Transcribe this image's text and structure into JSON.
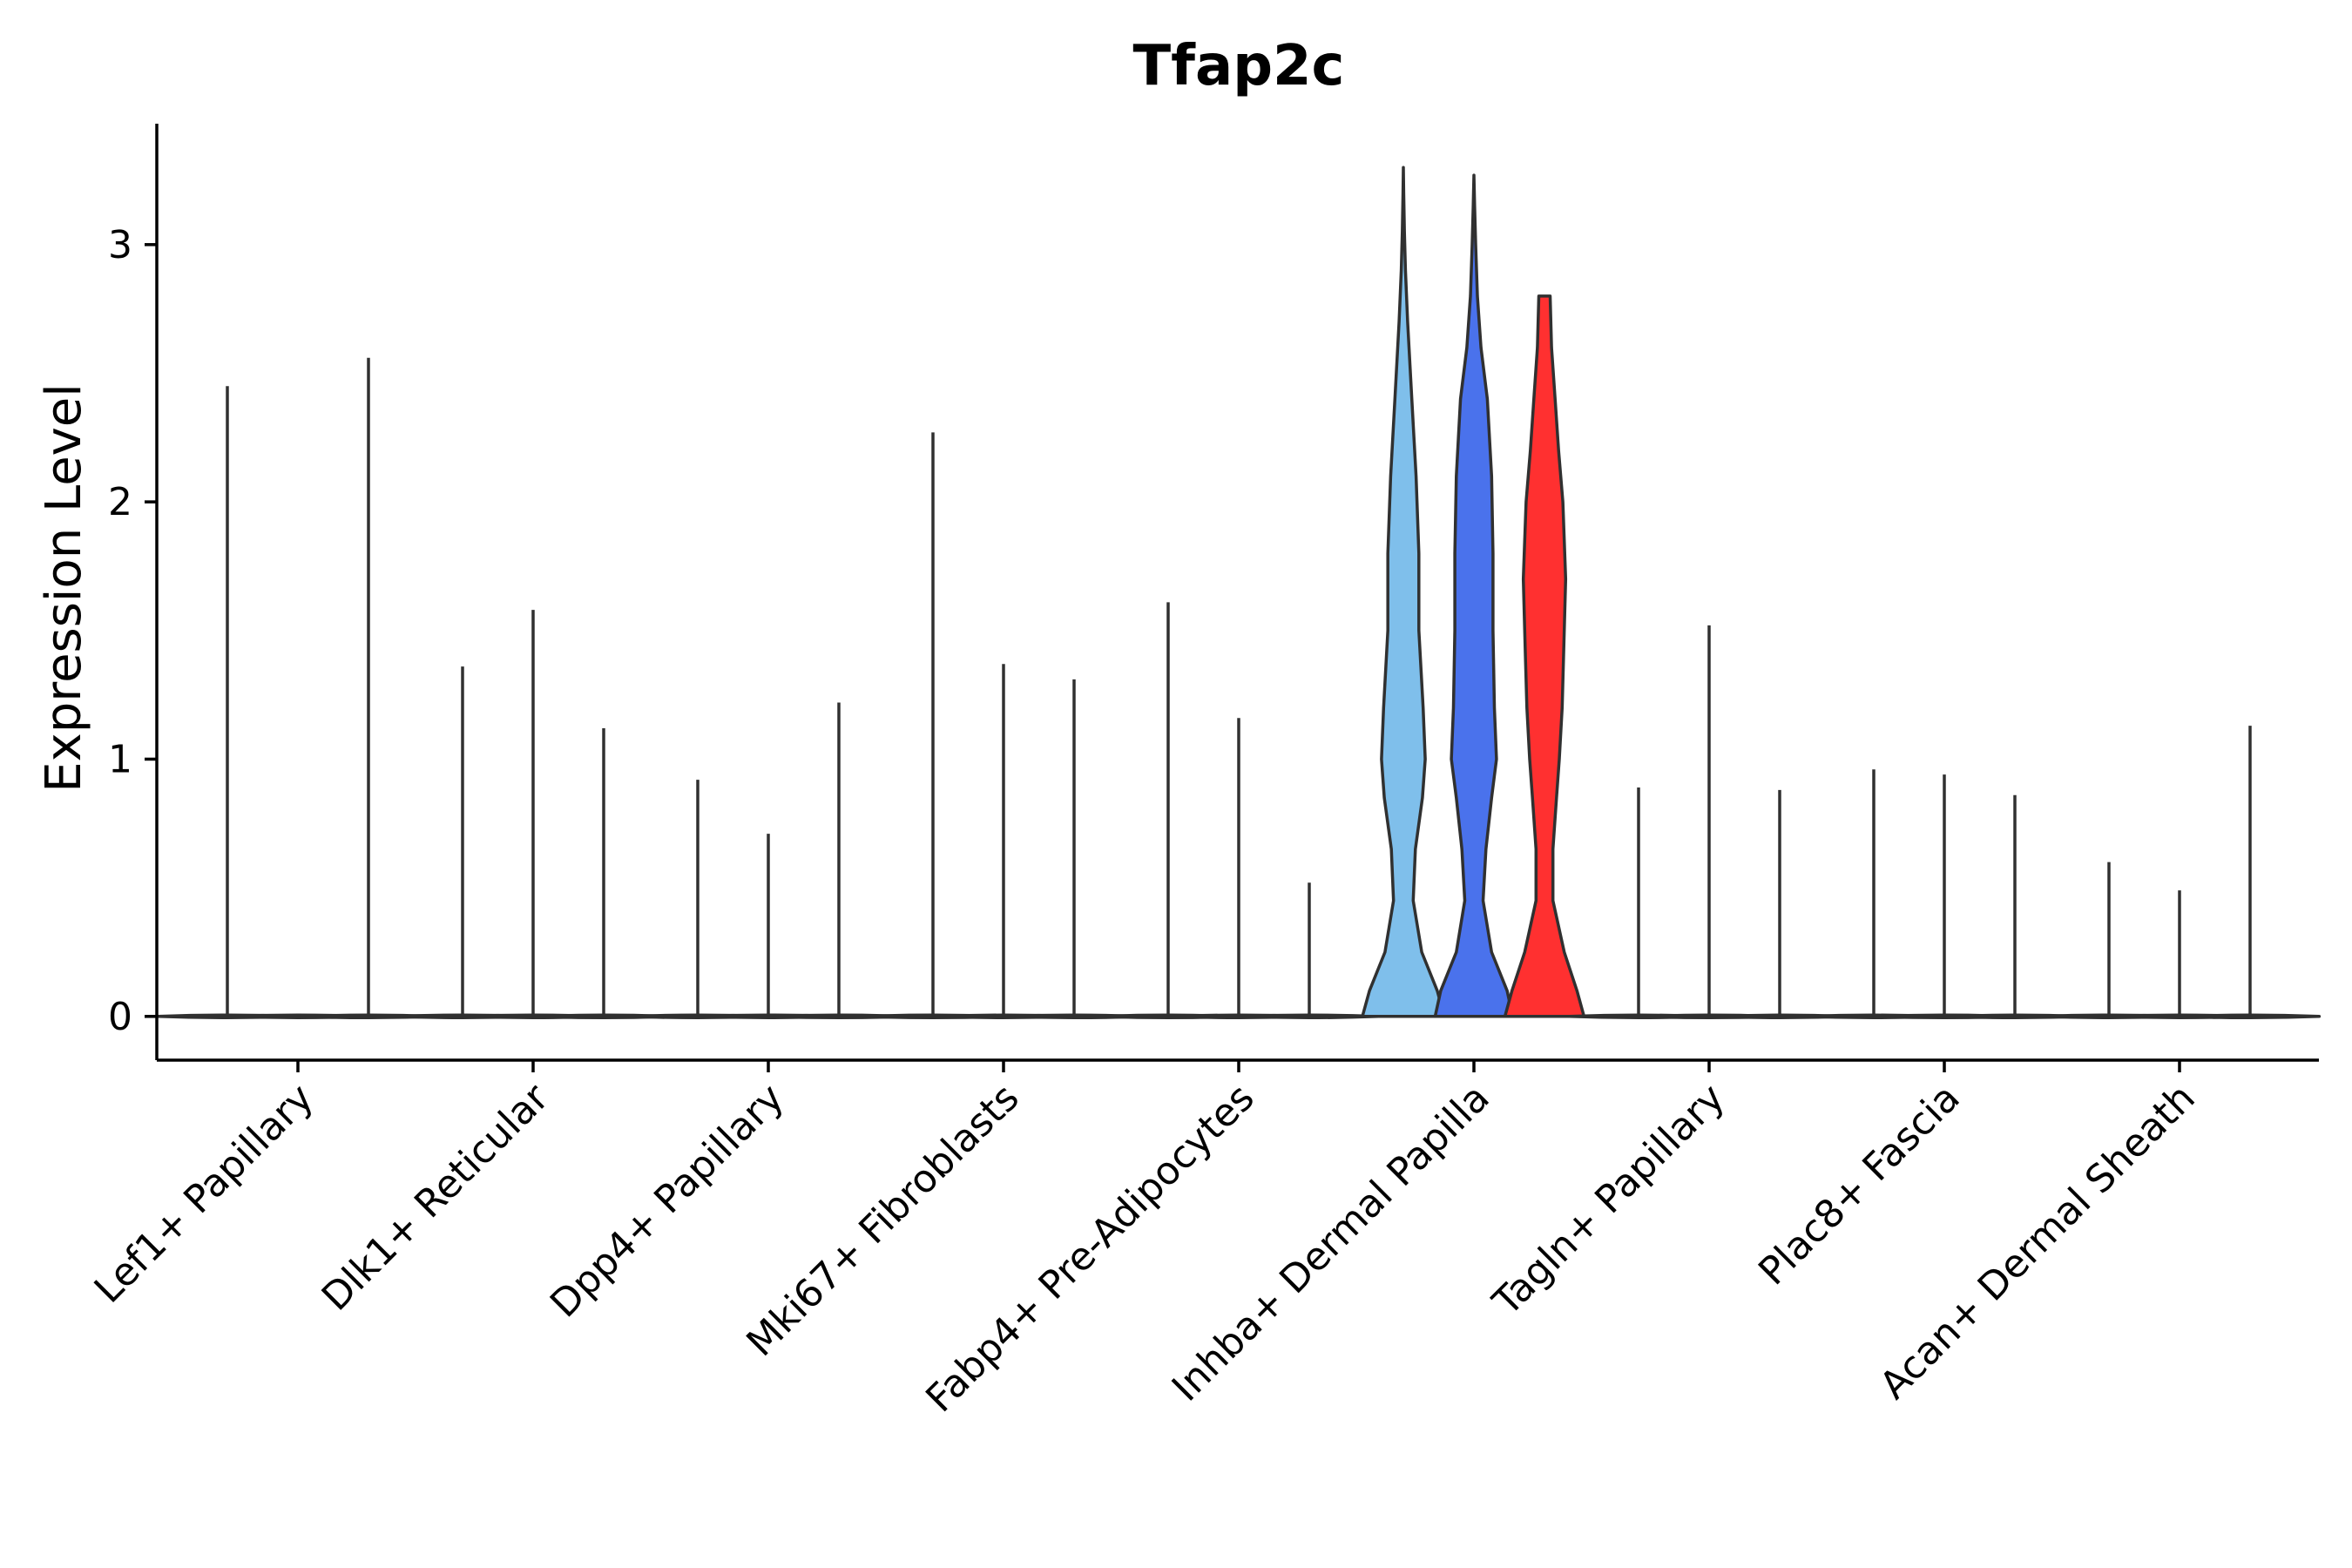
{
  "chart_data": {
    "type": "violin",
    "title": "Tfap2c",
    "xlabel": "",
    "ylabel": "Expression Level",
    "ylim": [
      -0.17,
      3.47
    ],
    "yticks": [
      0,
      1,
      2,
      3
    ],
    "grid": false,
    "legend": "none",
    "categories": [
      "Lef1+ Papillary",
      "Dlk1+ Reticular",
      "Dpp4+ Papillary",
      "Mki67+ Fibroblasts",
      "Fabp4+ Pre-Adipocytes",
      "Inhba+ Dermal Papilla",
      "Tagln+ Papillary",
      "Plac8+ Fascia",
      "Acan+ Dermal Sheath"
    ],
    "subgroups": [
      "group 1",
      "group 2",
      "group 3"
    ],
    "subgroup_colors": [
      "#7fbfeb",
      "#4a72ec",
      "#ff3030"
    ],
    "default_fill": "#ffffff",
    "max_values": [
      [
        2.45,
        null,
        2.56
      ],
      [
        1.36,
        1.58,
        1.12
      ],
      [
        0.92,
        0.71,
        1.22
      ],
      [
        2.27,
        1.37,
        1.31
      ],
      [
        1.61,
        1.16,
        0.52
      ],
      [
        3.3,
        3.27,
        2.8
      ],
      [
        0.89,
        1.52,
        0.88
      ],
      [
        0.96,
        0.94,
        0.86
      ],
      [
        0.6,
        0.49,
        1.13
      ]
    ],
    "density_profiles": {
      "Inhba+ Dermal Papilla": {
        "group 1": {
          "y": [
            0,
            0.1,
            0.25,
            0.45,
            0.65,
            0.85,
            1.0,
            1.2,
            1.5,
            1.8,
            2.1,
            2.4,
            2.7,
            2.9,
            3.05,
            3.2,
            3.3
          ],
          "half_width": [
            0.58,
            0.48,
            0.26,
            0.14,
            0.17,
            0.27,
            0.31,
            0.28,
            0.22,
            0.22,
            0.18,
            0.12,
            0.06,
            0.03,
            0.015,
            0.005,
            0
          ]
        },
        "group 2": {
          "y": [
            0,
            0.1,
            0.25,
            0.45,
            0.65,
            0.85,
            1.0,
            1.2,
            1.5,
            1.8,
            2.1,
            2.4,
            2.6,
            2.8,
            3.0,
            3.15,
            3.27
          ],
          "half_width": [
            0.55,
            0.47,
            0.25,
            0.13,
            0.17,
            0.25,
            0.32,
            0.29,
            0.27,
            0.27,
            0.25,
            0.19,
            0.1,
            0.05,
            0.025,
            0.01,
            0
          ]
        },
        "group 3": {
          "y": [
            0,
            0.1,
            0.25,
            0.45,
            0.65,
            0.85,
            1.0,
            1.2,
            1.4,
            1.7,
            2.0,
            2.2,
            2.4,
            2.6,
            2.8
          ],
          "half_width": [
            0.56,
            0.46,
            0.28,
            0.12,
            0.12,
            0.17,
            0.21,
            0.25,
            0.27,
            0.3,
            0.26,
            0.2,
            0.15,
            0.1,
            0.08
          ]
        }
      }
    },
    "default_profile": {
      "y": [
        0,
        0.15,
        0.3,
        0.5,
        0.75,
        1.0,
        1.25,
        1.5,
        1.75,
        2.0,
        2.25,
        2.5,
        2.75,
        3.0
      ],
      "half_width": [
        0.58,
        0.42,
        0.24,
        0.15,
        0.18,
        0.26,
        0.28,
        0.26,
        0.24,
        0.2,
        0.14,
        0.09,
        0.05,
        0.02
      ]
    }
  }
}
